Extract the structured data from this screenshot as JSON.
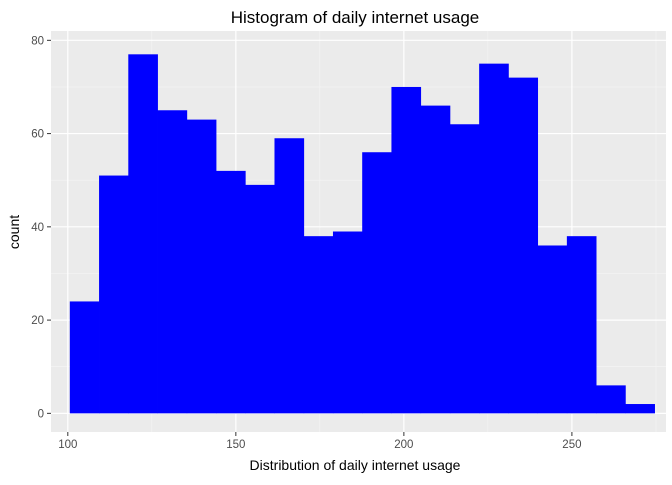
{
  "chart_data": {
    "type": "histogram",
    "title": "Histogram of daily internet usage",
    "xlabel": "Distribution of daily internet usage",
    "ylabel": "count",
    "xlim": [
      95,
      278
    ],
    "ylim": [
      -4,
      82
    ],
    "xticks": [
      100,
      150,
      200,
      250
    ],
    "yticks": [
      0,
      20,
      40,
      60,
      80
    ],
    "bin_width": 8.7,
    "bin_start": 100.6,
    "counts": [
      24,
      51,
      77,
      65,
      63,
      52,
      49,
      59,
      38,
      39,
      56,
      70,
      66,
      62,
      75,
      72,
      36,
      38,
      6,
      2
    ],
    "grid": true,
    "legend": "none",
    "colors": {
      "bar": "#0000ff",
      "panel": "#ebebeb",
      "grid_major": "#ffffff",
      "grid_minor": "#f5f5f5"
    }
  }
}
